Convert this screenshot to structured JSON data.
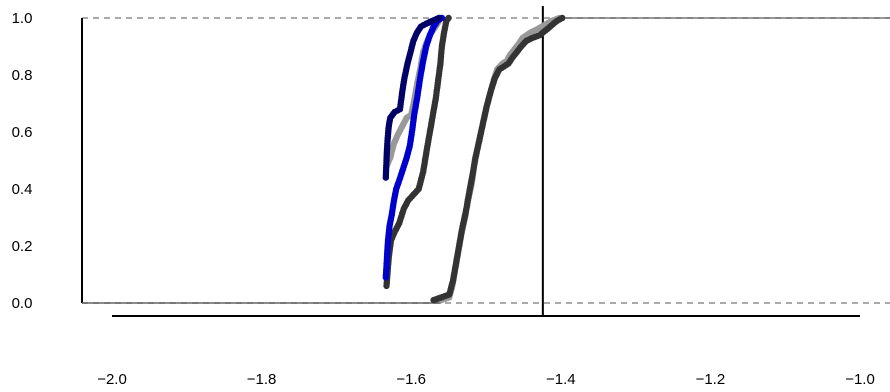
{
  "chart_data": {
    "type": "scatter",
    "title": "",
    "xlabel": "",
    "ylabel": "",
    "xlim": [
      -2.0,
      -1.0
    ],
    "ylim": [
      0.0,
      1.0
    ],
    "x_ticks": [
      -2.0,
      -1.8,
      -1.6,
      -1.4,
      -1.2,
      -1.0
    ],
    "x_tick_labels": [
      "−2.0",
      "−1.8",
      "−1.6",
      "−1.4",
      "−1.2",
      "−1.0"
    ],
    "y_ticks": [
      0.0,
      0.2,
      0.4,
      0.6,
      0.8,
      1.0
    ],
    "y_tick_labels": [
      "0.0",
      "0.2",
      "0.4",
      "0.6",
      "0.8",
      "1.0"
    ],
    "grid": false,
    "reference_lines": {
      "horizontal_dashed": [
        0.0,
        1.0
      ],
      "vertical_solid": -1.424
    },
    "series": [
      {
        "color": "#999999",
        "points": [
          [
            -1.56,
            0.01
          ],
          [
            -1.549,
            0.02
          ],
          [
            -1.545,
            0.06
          ],
          [
            -1.541,
            0.12
          ],
          [
            -1.537,
            0.18
          ],
          [
            -1.533,
            0.24
          ],
          [
            -1.528,
            0.3
          ],
          [
            -1.524,
            0.36
          ],
          [
            -1.519,
            0.42
          ],
          [
            -1.515,
            0.5
          ],
          [
            -1.51,
            0.56
          ],
          [
            -1.505,
            0.62
          ],
          [
            -1.5,
            0.68
          ],
          [
            -1.495,
            0.73
          ],
          [
            -1.49,
            0.78
          ],
          [
            -1.485,
            0.82
          ],
          [
            -1.478,
            0.84
          ],
          [
            -1.472,
            0.85
          ],
          [
            -1.468,
            0.87
          ],
          [
            -1.462,
            0.89
          ],
          [
            -1.456,
            0.91
          ],
          [
            -1.451,
            0.93
          ],
          [
            -1.44,
            0.95
          ],
          [
            -1.432,
            0.96
          ],
          [
            -1.412,
            0.99
          ],
          [
            -1.402,
            1.0
          ]
        ]
      },
      {
        "color": "#333333",
        "points": [
          [
            -1.57,
            0.01
          ],
          [
            -1.549,
            0.03
          ],
          [
            -1.544,
            0.08
          ],
          [
            -1.54,
            0.14
          ],
          [
            -1.536,
            0.2
          ],
          [
            -1.532,
            0.26
          ],
          [
            -1.527,
            0.32
          ],
          [
            -1.523,
            0.38
          ],
          [
            -1.518,
            0.45
          ],
          [
            -1.514,
            0.51
          ],
          [
            -1.509,
            0.57
          ],
          [
            -1.504,
            0.63
          ],
          [
            -1.499,
            0.69
          ],
          [
            -1.494,
            0.74
          ],
          [
            -1.488,
            0.79
          ],
          [
            -1.482,
            0.82
          ],
          [
            -1.476,
            0.83
          ],
          [
            -1.47,
            0.84
          ],
          [
            -1.465,
            0.86
          ],
          [
            -1.459,
            0.88
          ],
          [
            -1.453,
            0.9
          ],
          [
            -1.446,
            0.92
          ],
          [
            -1.438,
            0.93
          ],
          [
            -1.428,
            0.94
          ],
          [
            -1.405,
            0.99
          ],
          [
            -1.398,
            1.0
          ]
        ]
      },
      {
        "color": "#999999",
        "points": [
          [
            -1.633,
            0.48
          ],
          [
            -1.628,
            0.51
          ],
          [
            -1.623,
            0.56
          ],
          [
            -1.618,
            0.59
          ],
          [
            -1.612,
            0.62
          ],
          [
            -1.606,
            0.65
          ],
          [
            -1.6,
            0.66
          ],
          [
            -1.596,
            0.71
          ],
          [
            -1.592,
            0.77
          ],
          [
            -1.588,
            0.82
          ],
          [
            -1.584,
            0.88
          ],
          [
            -1.58,
            0.91
          ],
          [
            -1.575,
            0.94
          ],
          [
            -1.57,
            0.96
          ],
          [
            -1.565,
            0.98
          ],
          [
            -1.561,
            1.0
          ]
        ]
      },
      {
        "color": "#333333",
        "points": [
          [
            -1.633,
            0.06
          ],
          [
            -1.63,
            0.16
          ],
          [
            -1.627,
            0.22
          ],
          [
            -1.622,
            0.25
          ],
          [
            -1.616,
            0.28
          ],
          [
            -1.61,
            0.33
          ],
          [
            -1.604,
            0.36
          ],
          [
            -1.597,
            0.38
          ],
          [
            -1.59,
            0.4
          ],
          [
            -1.584,
            0.46
          ],
          [
            -1.579,
            0.54
          ],
          [
            -1.575,
            0.6
          ],
          [
            -1.571,
            0.66
          ],
          [
            -1.567,
            0.72
          ],
          [
            -1.564,
            0.78
          ],
          [
            -1.561,
            0.84
          ],
          [
            -1.559,
            0.9
          ],
          [
            -1.556,
            0.95
          ],
          [
            -1.553,
            0.99
          ],
          [
            -1.55,
            1.0
          ]
        ]
      },
      {
        "color": "#0000cc",
        "points": [
          [
            -1.634,
            0.09
          ],
          [
            -1.633,
            0.13
          ],
          [
            -1.632,
            0.18
          ],
          [
            -1.631,
            0.22
          ],
          [
            -1.629,
            0.27
          ],
          [
            -1.626,
            0.31
          ],
          [
            -1.623,
            0.36
          ],
          [
            -1.62,
            0.4
          ],
          [
            -1.616,
            0.43
          ],
          [
            -1.611,
            0.47
          ],
          [
            -1.606,
            0.51
          ],
          [
            -1.602,
            0.55
          ],
          [
            -1.599,
            0.6
          ],
          [
            -1.596,
            0.66
          ],
          [
            -1.592,
            0.72
          ],
          [
            -1.588,
            0.79
          ],
          [
            -1.584,
            0.85
          ],
          [
            -1.58,
            0.9
          ],
          [
            -1.575,
            0.94
          ],
          [
            -1.57,
            0.97
          ],
          [
            -1.565,
            0.99
          ],
          [
            -1.559,
            1.0
          ]
        ]
      },
      {
        "color": "#000066",
        "points": [
          [
            -1.634,
            0.44
          ],
          [
            -1.633,
            0.5
          ],
          [
            -1.632,
            0.56
          ],
          [
            -1.63,
            0.62
          ],
          [
            -1.628,
            0.65
          ],
          [
            -1.622,
            0.67
          ],
          [
            -1.615,
            0.68
          ],
          [
            -1.612,
            0.74
          ],
          [
            -1.609,
            0.79
          ],
          [
            -1.605,
            0.84
          ],
          [
            -1.601,
            0.88
          ],
          [
            -1.597,
            0.92
          ],
          [
            -1.592,
            0.95
          ],
          [
            -1.587,
            0.97
          ],
          [
            -1.58,
            0.98
          ],
          [
            -1.572,
            0.99
          ],
          [
            -1.563,
            1.0
          ]
        ]
      }
    ]
  }
}
